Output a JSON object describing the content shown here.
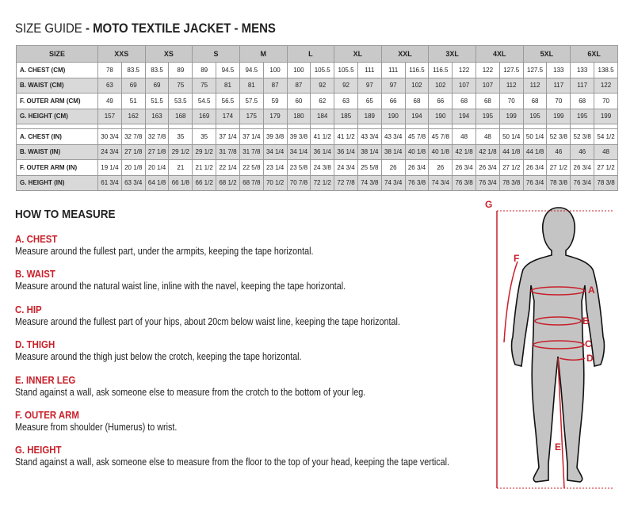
{
  "title": {
    "prefix": "SIZE GUIDE",
    "main": " - MOTO TEXTILE JACKET - MENS"
  },
  "table": {
    "header_label": "SIZE",
    "sizes": [
      "XXS",
      "XS",
      "S",
      "M",
      "L",
      "XL",
      "XXL",
      "3XL",
      "4XL",
      "5XL",
      "6XL"
    ],
    "cm_rows": [
      {
        "label": "A. CHEST (CM)",
        "values": [
          "78",
          "83.5",
          "83.5",
          "89",
          "89",
          "94.5",
          "94.5",
          "100",
          "100",
          "105.5",
          "105.5",
          "111",
          "111",
          "116.5",
          "116.5",
          "122",
          "122",
          "127.5",
          "127.5",
          "133",
          "133",
          "138.5"
        ]
      },
      {
        "label": "B. WAIST (CM)",
        "values": [
          "63",
          "69",
          "69",
          "75",
          "75",
          "81",
          "81",
          "87",
          "87",
          "92",
          "92",
          "97",
          "97",
          "102",
          "102",
          "107",
          "107",
          "112",
          "112",
          "117",
          "117",
          "122"
        ]
      },
      {
        "label": "F. OUTER ARM (CM)",
        "values": [
          "49",
          "51",
          "51.5",
          "53.5",
          "54.5",
          "56.5",
          "57.5",
          "59",
          "60",
          "62",
          "63",
          "65",
          "66",
          "68",
          "66",
          "68",
          "68",
          "70",
          "68",
          "70",
          "68",
          "70"
        ]
      },
      {
        "label": "G. HEIGHT (CM)",
        "values": [
          "157",
          "162",
          "163",
          "168",
          "169",
          "174",
          "175",
          "179",
          "180",
          "184",
          "185",
          "189",
          "190",
          "194",
          "190",
          "194",
          "195",
          "199",
          "195",
          "199",
          "195",
          "199"
        ]
      }
    ],
    "in_rows": [
      {
        "label": "A. CHEST (IN)",
        "values": [
          "30 3/4",
          "32 7/8",
          "32 7/8",
          "35",
          "35",
          "37 1/4",
          "37 1/4",
          "39 3/8",
          "39 3/8",
          "41 1/2",
          "41 1/2",
          "43 3/4",
          "43 3/4",
          "45 7/8",
          "45 7/8",
          "48",
          "48",
          "50 1/4",
          "50 1/4",
          "52 3/8",
          "52 3/8",
          "54 1/2"
        ]
      },
      {
        "label": "B. WAIST (IN)",
        "values": [
          "24 3/4",
          "27 1/8",
          "27 1/8",
          "29 1/2",
          "29 1/2",
          "31 7/8",
          "31 7/8",
          "34 1/4",
          "34 1/4",
          "36 1/4",
          "36 1/4",
          "38 1/4",
          "38 1/4",
          "40 1/8",
          "40 1/8",
          "42 1/8",
          "42 1/8",
          "44 1/8",
          "44 1/8",
          "46",
          "46",
          "48"
        ]
      },
      {
        "label": "F. OUTER ARM (IN)",
        "values": [
          "19 1/4",
          "20 1/8",
          "20 1/4",
          "21",
          "21 1/2",
          "22 1/4",
          "22 5/8",
          "23 1/4",
          "23 5/8",
          "24 3/8",
          "24 3/4",
          "25 5/8",
          "26",
          "26 3/4",
          "26",
          "26 3/4",
          "26 3/4",
          "27 1/2",
          "26 3/4",
          "27 1/2",
          "26 3/4",
          "27 1/2"
        ]
      },
      {
        "label": "G. HEIGHT (IN)",
        "values": [
          "61 3/4",
          "63 3/4",
          "64 1/8",
          "66 1/8",
          "66 1/2",
          "68 1/2",
          "68 7/8",
          "70 1/2",
          "70 7/8",
          "72 1/2",
          "72 7/8",
          "74 3/8",
          "74 3/4",
          "76 3/8",
          "74 3/4",
          "76 3/8",
          "76 3/4",
          "78 3/8",
          "76 3/4",
          "78 3/8",
          "76 3/4",
          "78 3/8"
        ]
      }
    ]
  },
  "how_to_measure": {
    "title": "HOW TO MEASURE",
    "items": [
      {
        "heading": "A. CHEST",
        "text": "Measure around the fullest part, under the armpits, keeping the tape horizontal."
      },
      {
        "heading": "B. WAIST",
        "text": "Measure around the natural waist line, inline with the navel, keeping the tape horizontal."
      },
      {
        "heading": "C. HIP",
        "text": "Measure around the fullest part of your hips, about 20cm below waist line, keeping the tape horizontal."
      },
      {
        "heading": "D. THIGH",
        "text": "Measure around the thigh just below the crotch, keeping the tape horizontal."
      },
      {
        "heading": "E. INNER LEG",
        "text": "Stand against a wall, ask someone else to measure from the crotch to the bottom of your leg."
      },
      {
        "heading": "F. OUTER ARM",
        "text": "Measure from shoulder (Humerus) to wrist."
      },
      {
        "heading": "G. HEIGHT",
        "text": "Stand against a wall, ask someone else to measure from the floor to the top of your head, keeping the tape vertical."
      }
    ]
  },
  "figure": {
    "labels": {
      "a": "A",
      "b": "B",
      "c": "C",
      "d": "D",
      "e": "E",
      "f": "F",
      "g": "G"
    }
  },
  "colors": {
    "accent": "#c8202a",
    "header_bg": "#c9c9c9",
    "row_alt": "#d9d9d9",
    "body_fill": "#c4c4c4"
  }
}
